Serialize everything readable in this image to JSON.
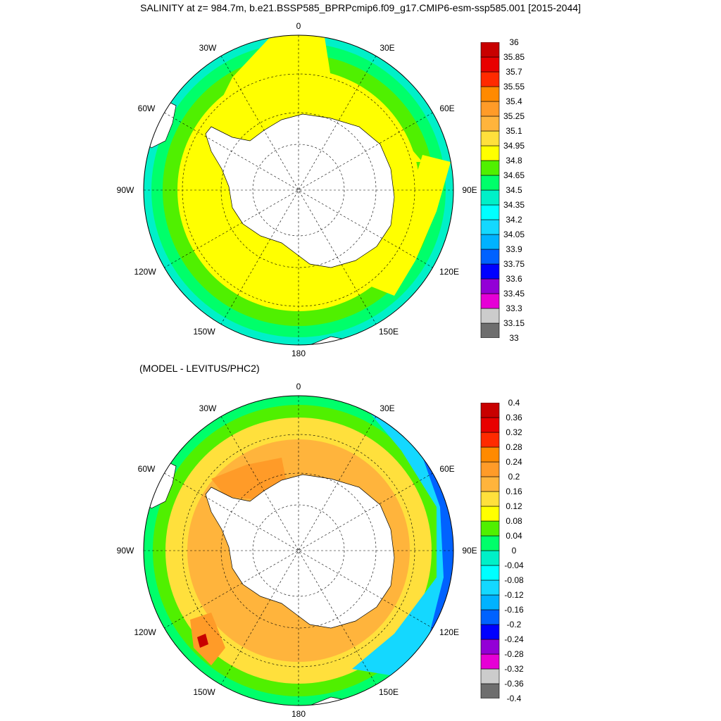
{
  "title": "SALINITY at z= 984.7m, b.e21.BSSP585_BPRPcmip6.f09_g17.CMIP6-esm-ssp585.001 [2015-2044]",
  "subtitle": "(MODEL - LEVITUS/PHC2)",
  "longitude_labels": [
    "0",
    "30E",
    "60E",
    "90E",
    "120E",
    "150E",
    "180",
    "150W",
    "120W",
    "90W",
    "60W",
    "30W"
  ],
  "colors": {
    "scale": [
      "#6e6e6e",
      "#cccccc",
      "#e600d6",
      "#9300d6",
      "#0000ff",
      "#0062ff",
      "#00b2ff",
      "#14d8ff",
      "#00ffff",
      "#00f0c8",
      "#00ff6a",
      "#50f000",
      "#ffff00",
      "#ffe03c",
      "#ffb43c",
      "#ff9b28",
      "#ff8a00",
      "#ff2a00",
      "#e80000",
      "#c80000"
    ],
    "coastline": "#000000",
    "land": "#ffffff"
  },
  "chart_data": [
    {
      "type": "map",
      "projection": "south polar stereographic",
      "title": "SALINITY at z= 984.7m, b.e21.BSSP585_BPRPcmip6.f09_g17.CMIP6-esm-ssp585.001 [2015-2044]",
      "colorbar_labels": [
        "33",
        "33.15",
        "33.3",
        "33.45",
        "33.6",
        "33.75",
        "33.9",
        "34.05",
        "34.2",
        "34.35",
        "34.5",
        "34.65",
        "34.8",
        "34.95",
        "35.1",
        "35.25",
        "35.4",
        "35.55",
        "35.7",
        "35.85",
        "36"
      ],
      "levels": [
        33,
        33.15,
        33.3,
        33.45,
        33.6,
        33.75,
        33.9,
        34.05,
        34.2,
        34.35,
        34.5,
        34.65,
        34.8,
        34.95,
        35.1,
        35.25,
        35.4,
        35.55,
        35.7,
        35.85,
        36
      ],
      "rings": [
        {
          "value": 34.9,
          "rmin": 0.3,
          "rmax": 0.78
        },
        {
          "value": 34.75,
          "rmin": 0.78,
          "rmax": 0.88
        },
        {
          "value": 34.55,
          "rmin": 0.88,
          "rmax": 0.95
        },
        {
          "value": 34.4,
          "rmin": 0.95,
          "rmax": 1.0
        }
      ]
    },
    {
      "type": "map",
      "projection": "south polar stereographic",
      "title": "(MODEL - LEVITUS/PHC2)",
      "colorbar_labels": [
        "-0.4",
        "-0.36",
        "-0.32",
        "-0.28",
        "-0.24",
        "-0.2",
        "-0.16",
        "-0.12",
        "-0.08",
        "-0.04",
        "0",
        "0.04",
        "0.08",
        "0.12",
        "0.16",
        "0.2",
        "0.24",
        "0.28",
        "0.32",
        "0.36",
        "0.4"
      ],
      "levels": [
        -0.4,
        -0.36,
        -0.32,
        -0.28,
        -0.24,
        -0.2,
        -0.16,
        -0.12,
        -0.08,
        -0.04,
        0,
        0.04,
        0.08,
        0.12,
        0.16,
        0.2,
        0.24,
        0.28,
        0.32,
        0.36,
        0.4
      ],
      "rings": [
        {
          "value": 0.17,
          "rmin": 0.3,
          "rmax": 0.72
        },
        {
          "value": 0.13,
          "rmin": 0.72,
          "rmax": 0.86
        },
        {
          "value": 0.06,
          "rmin": 0.86,
          "rmax": 0.94
        },
        {
          "value": 0.02,
          "rmin": 0.94,
          "rmax": 1.0
        }
      ]
    }
  ]
}
